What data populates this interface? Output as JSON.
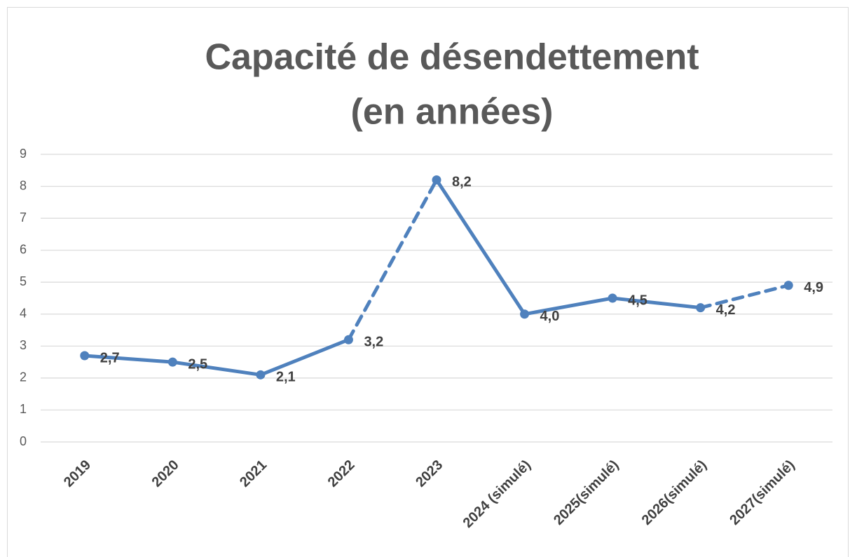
{
  "chart_data": {
    "type": "line",
    "title": [
      "Capacité de désendettement",
      "(en années)"
    ],
    "categories": [
      "2019",
      "2020",
      "2021",
      "2022",
      "2023",
      "2024 (simulé)",
      "2025(simulé)",
      "2026(simulé)",
      "2027(simulé)"
    ],
    "values": [
      2.7,
      2.5,
      2.1,
      3.2,
      8.2,
      4.0,
      4.5,
      4.2,
      4.9
    ],
    "value_labels": [
      "2,7",
      "2,5",
      "2,1",
      "3,2",
      "8,2",
      "4,0",
      "4,5",
      "4,2",
      "4,9"
    ],
    "color": "#4f81bd",
    "dashed_segments": [
      3,
      7
    ],
    "ylim": [
      0,
      9
    ],
    "yticks": [
      0,
      1,
      2,
      3,
      4,
      5,
      6,
      7,
      8,
      9
    ],
    "grid": true
  }
}
